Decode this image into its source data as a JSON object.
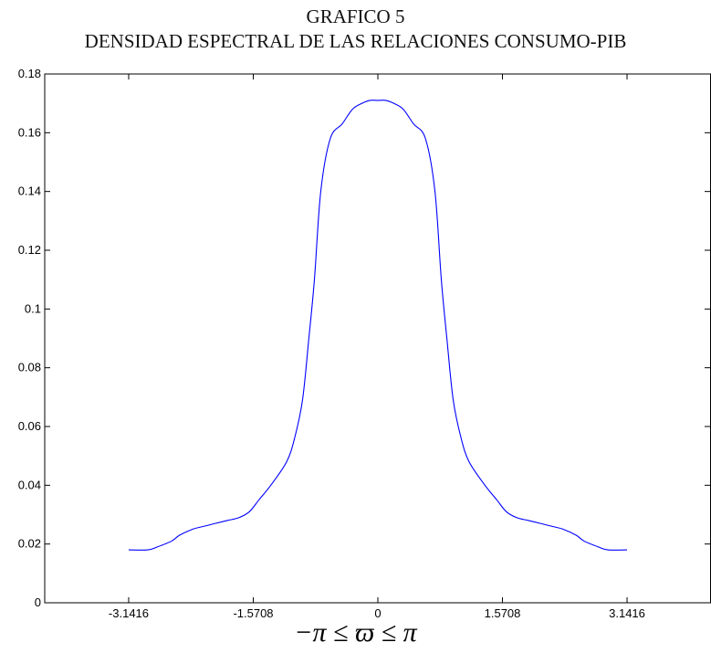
{
  "chart_data": {
    "type": "line",
    "title": "GRAFICO 5",
    "subtitle": "DENSIDAD ESPECTRAL DE LAS RELACIONES CONSUMO-PIB",
    "xlabel": "−π ≤ ϖ ≤ π",
    "ylabel": "",
    "xlim": [
      -4.2,
      4.2
    ],
    "ylim": [
      0,
      0.18
    ],
    "xticks": [
      -3.1416,
      -1.5708,
      0,
      1.5708,
      3.1416
    ],
    "xtick_labels": [
      "-3.1416",
      "-1.5708",
      "0",
      "1.5708",
      "3.1416"
    ],
    "yticks": [
      0,
      0.02,
      0.04,
      0.06,
      0.08,
      0.1,
      0.12,
      0.14,
      0.16,
      0.18
    ],
    "ytick_labels": [
      "0",
      "0.02",
      "0.04",
      "0.06",
      "0.08",
      "0.1",
      "0.12",
      "0.14",
      "0.16",
      "0.18"
    ],
    "grid": false,
    "line_color": "#0000ff",
    "series": [
      {
        "x": [
          -3.1416,
          -2.9,
          -2.78,
          -2.6,
          -2.5,
          -2.34,
          -2.2,
          -2.05,
          -1.9,
          -1.75,
          -1.62,
          -1.5,
          -1.35,
          -1.15,
          -1.05,
          -0.95,
          -0.87,
          -0.8,
          -0.72,
          -0.6,
          -0.45,
          -0.32,
          -0.2,
          -0.1,
          0,
          0.1,
          0.2,
          0.32,
          0.45,
          0.6,
          0.72,
          0.8,
          0.87,
          0.95,
          1.05,
          1.15,
          1.35,
          1.5,
          1.62,
          1.75,
          1.9,
          2.05,
          2.2,
          2.34,
          2.5,
          2.6,
          2.78,
          2.9,
          3.1416
        ],
        "y": [
          0.018,
          0.018,
          0.019,
          0.021,
          0.023,
          0.025,
          0.026,
          0.027,
          0.028,
          0.029,
          0.031,
          0.035,
          0.04,
          0.048,
          0.056,
          0.069,
          0.09,
          0.11,
          0.14,
          0.158,
          0.163,
          0.168,
          0.17,
          0.171,
          0.171,
          0.171,
          0.17,
          0.168,
          0.163,
          0.158,
          0.14,
          0.11,
          0.09,
          0.069,
          0.056,
          0.048,
          0.04,
          0.035,
          0.031,
          0.029,
          0.028,
          0.027,
          0.026,
          0.025,
          0.023,
          0.021,
          0.019,
          0.018,
          0.018
        ]
      }
    ]
  }
}
